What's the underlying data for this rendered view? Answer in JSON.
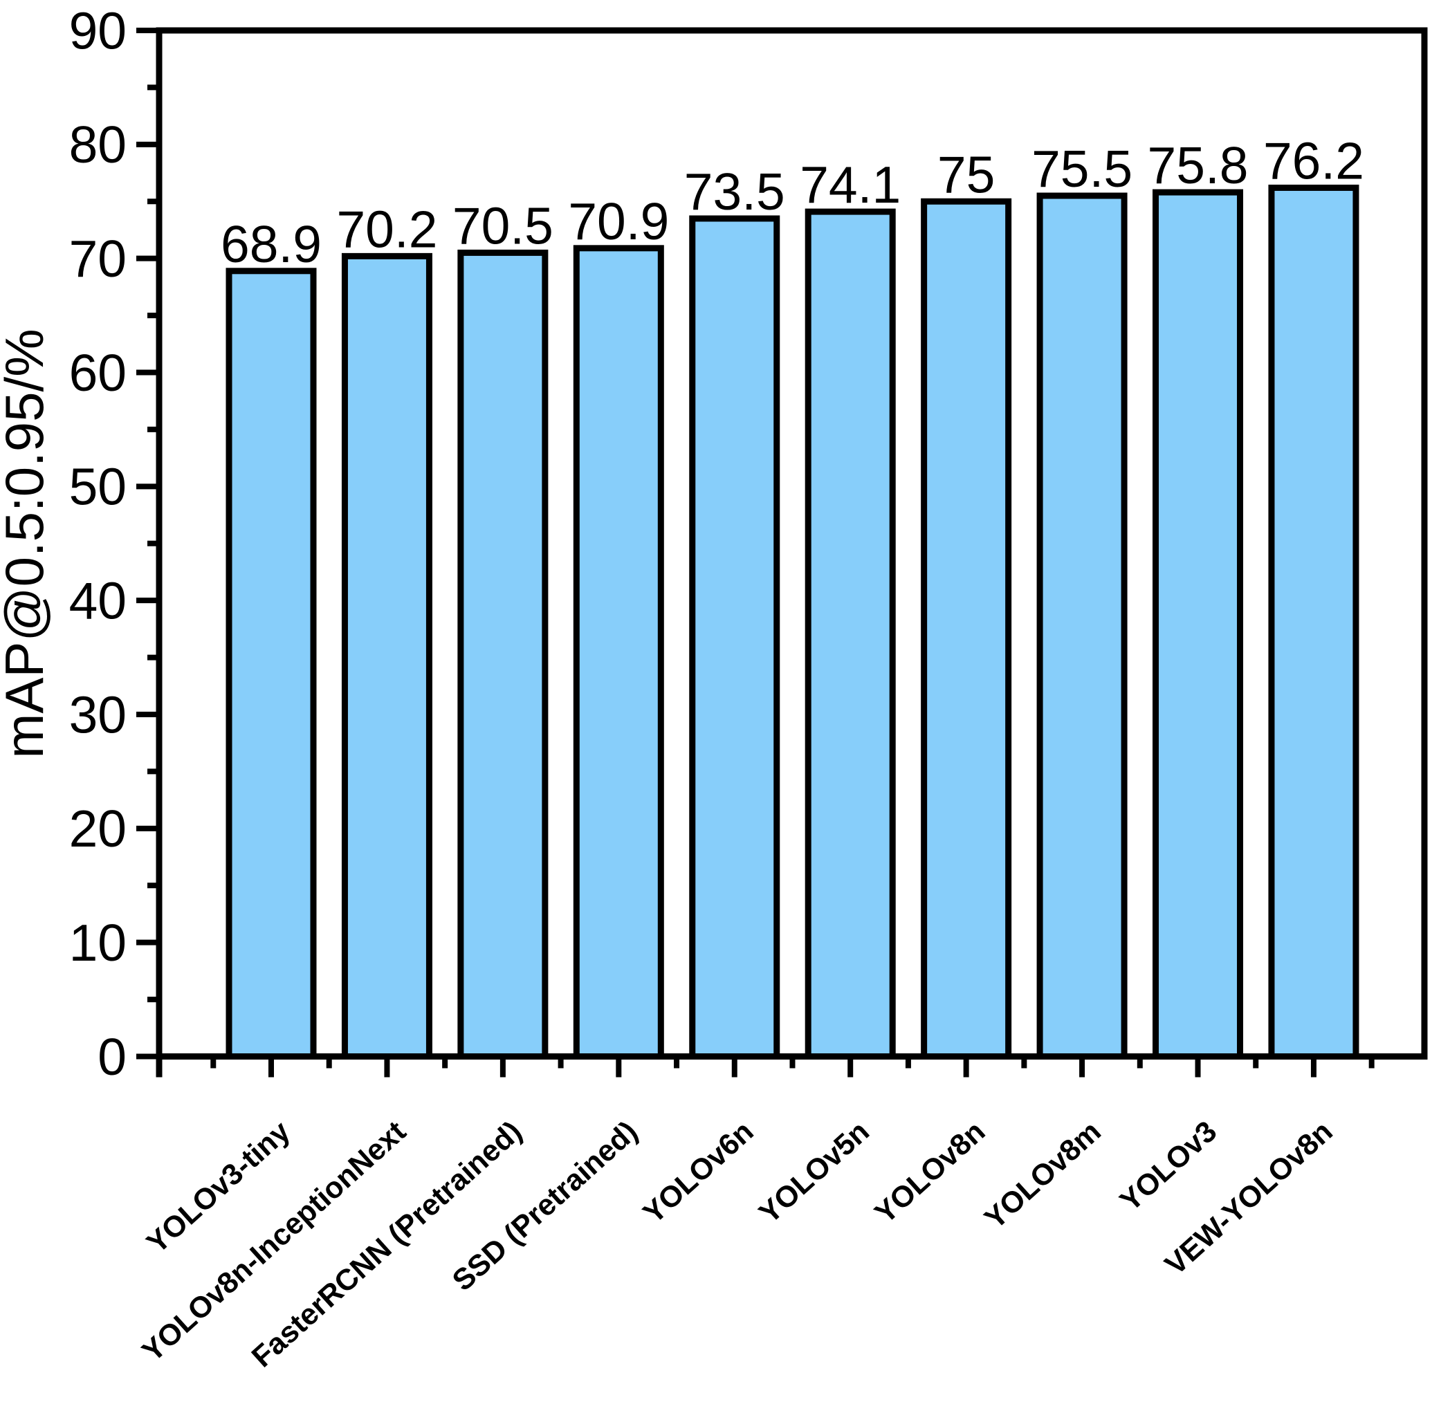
{
  "figure": {
    "background": "#ffffff"
  },
  "chart_data": {
    "type": "bar",
    "title": "",
    "categories": [
      "YOLOv3-tiny",
      "YOLOv8n-InceptionNext",
      "FasterRCNN (Pretrained)",
      "SSD (Pretrained)",
      "YOLOv6n",
      "YOLOv5n",
      "YOLOv8n",
      "YOLOv8m",
      "YOLOv3",
      "VEW-YOLOv8n"
    ],
    "values": [
      68.9,
      70.2,
      70.5,
      70.9,
      73.5,
      74.1,
      75,
      75.5,
      75.8,
      76.2
    ],
    "value_labels": [
      "68.9",
      "70.2",
      "70.5",
      "70.9",
      "73.5",
      "74.1",
      "75",
      "75.5",
      "75.8",
      "76.2"
    ],
    "xlabel": "",
    "ylabel": "mAP@0.5:0.95/%",
    "ylim": [
      0,
      90
    ],
    "y_major_ticks": [
      0,
      10,
      20,
      30,
      40,
      50,
      60,
      70,
      80,
      90
    ],
    "y_minor_step": 5,
    "category_label_rotation_deg": 42,
    "grid": false,
    "legend": null,
    "bar_color": "#87CEFA",
    "bar_edge_color": "#000000",
    "axis_color": "#000000",
    "text_color": "#000000"
  }
}
